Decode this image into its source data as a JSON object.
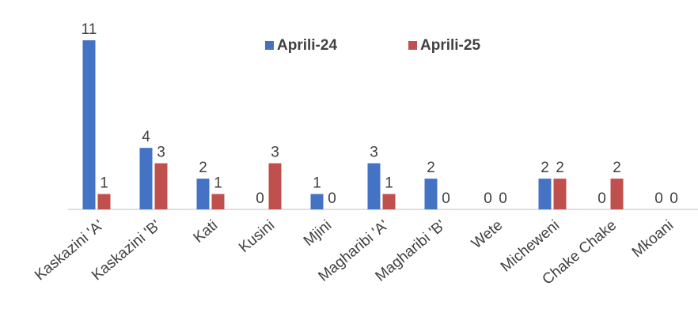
{
  "chart_data": {
    "type": "bar",
    "categories": [
      "Kaskazini 'A'",
      "Kaskazini 'B'",
      "Kati",
      "Kusini",
      "Mjini",
      "Magharibi 'A'",
      "Magharibi 'B'",
      "Wete",
      "Micheweni",
      "Chake Chake",
      "Mkoani"
    ],
    "series": [
      {
        "name": "Aprili-24",
        "color": "#4472c4",
        "values": [
          11,
          4,
          2,
          0,
          1,
          3,
          2,
          0,
          2,
          0,
          0
        ]
      },
      {
        "name": "Aprili-25",
        "color": "#c0504d",
        "values": [
          1,
          3,
          1,
          3,
          0,
          1,
          0,
          0,
          2,
          2,
          0
        ]
      }
    ],
    "ylim": [
      0,
      11
    ]
  }
}
